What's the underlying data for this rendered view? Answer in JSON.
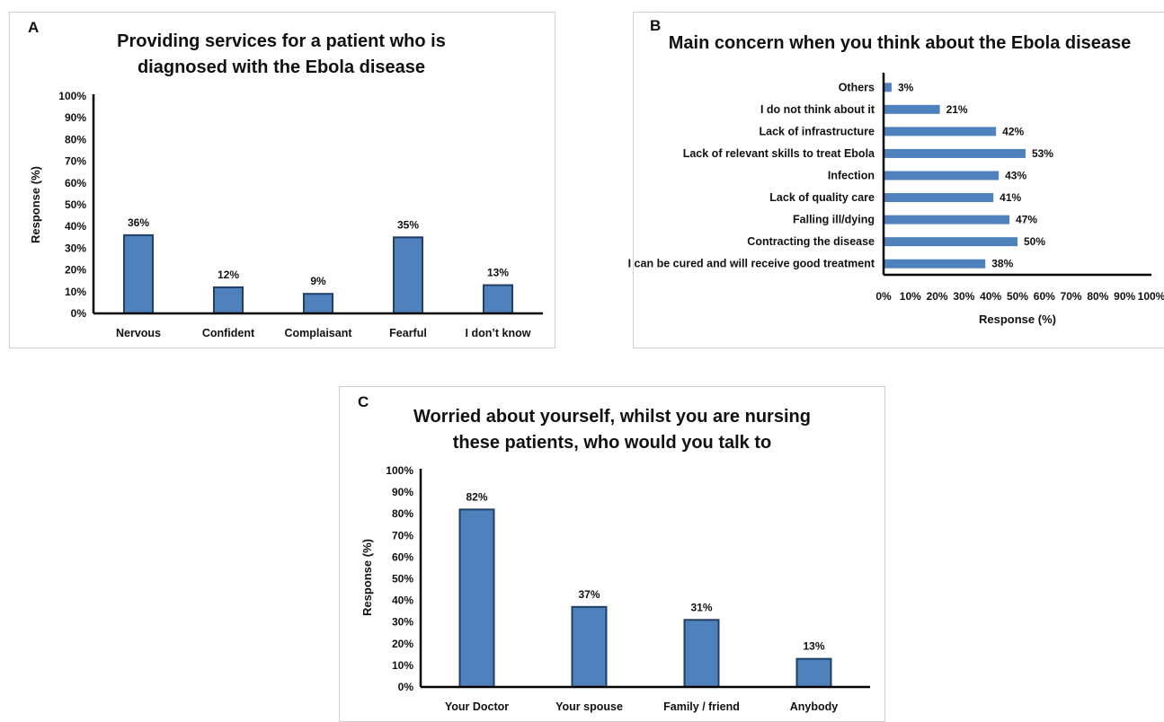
{
  "chart_data": [
    {
      "type": "bar",
      "panel_label": "A",
      "title": "Providing services for a patient who is diagnosed with the Ebola disease",
      "title_lines": [
        "Providing services for a patient who is",
        "diagnosed with the Ebola disease"
      ],
      "ylabel": "Response (%)",
      "xlabel": "",
      "ylim": [
        0,
        100
      ],
      "yticks": [
        "0%",
        "10%",
        "20%",
        "30%",
        "40%",
        "50%",
        "60%",
        "70%",
        "80%",
        "90%",
        "100%"
      ],
      "categories": [
        "Nervous",
        "Confident",
        "Complaisant",
        "Fearful",
        "I don’t know"
      ],
      "values": [
        36,
        12,
        9,
        35,
        13
      ],
      "value_labels": [
        "36%",
        "12%",
        "9%",
        "35%",
        "13%"
      ],
      "grid": false,
      "bar_color": "#4f81bd",
      "bar_edge_color": "#1f3f66"
    },
    {
      "type": "bar",
      "orientation": "horizontal",
      "panel_label": "B",
      "title": "Main concern when you think about the Ebola disease",
      "title_lines": [
        "Main concern when you think about the Ebola disease"
      ],
      "xlabel": "Response (%)",
      "ylabel": "",
      "xlim": [
        0,
        100
      ],
      "xticks": [
        "0%",
        "10%",
        "20%",
        "30%",
        "40%",
        "50%",
        "60%",
        "70%",
        "80%",
        "90%",
        "100%"
      ],
      "categories": [
        "Others",
        "I do not think about it",
        "Lack of infrastructure",
        "Lack of relevant skills to treat Ebola",
        "Infection",
        "Lack of quality care",
        "Falling ill/dying",
        "Contracting the disease",
        "I can be cured and will receive good treatment"
      ],
      "values": [
        3,
        21,
        42,
        53,
        43,
        41,
        47,
        50,
        38
      ],
      "value_labels": [
        "3%",
        "21%",
        "42%",
        "53%",
        "43%",
        "41%",
        "47%",
        "50%",
        "38%"
      ],
      "grid": false,
      "bar_color": "#4f81bd"
    },
    {
      "type": "bar",
      "panel_label": "C",
      "title": "Worried about yourself, whilst you are nursing these patients, who would you talk to",
      "title_lines": [
        "Worried about yourself, whilst you are nursing",
        "these patients, who would you talk to"
      ],
      "ylabel": "Response (%)",
      "xlabel": "",
      "ylim": [
        0,
        100
      ],
      "yticks": [
        "0%",
        "10%",
        "20%",
        "30%",
        "40%",
        "50%",
        "60%",
        "70%",
        "80%",
        "90%",
        "100%"
      ],
      "categories": [
        "Your Doctor",
        "Your spouse",
        "Family / friend",
        "Anybody"
      ],
      "values": [
        82,
        37,
        31,
        13
      ],
      "value_labels": [
        "82%",
        "37%",
        "31%",
        "13%"
      ],
      "grid": false,
      "bar_color": "#4f81bd",
      "bar_edge_color": "#1f3f66"
    }
  ]
}
